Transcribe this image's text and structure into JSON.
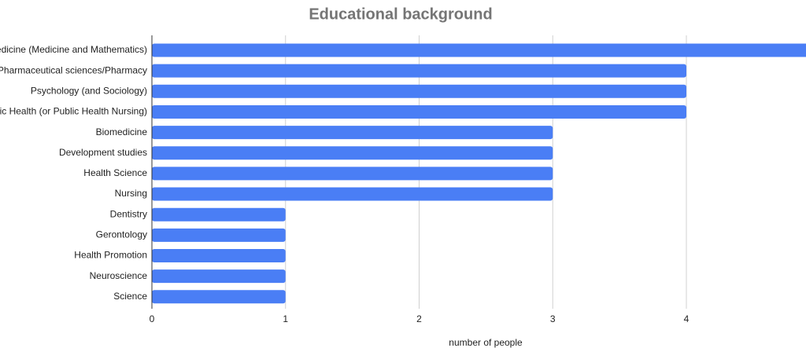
{
  "chart_data": {
    "type": "bar",
    "orientation": "horizontal",
    "title": "Educational background",
    "x_label": "number of people",
    "categories": [
      "edicine (Medicine and Mathematics)",
      "Pharmaceutical sciences/Pharmacy",
      "Psychology (and Sociology)",
      "ic Health (or Public Health Nursing)",
      "Biomedicine",
      "Development studies",
      "Health Science",
      "Nursing",
      "Dentistry",
      "Gerontology",
      "Health Promotion",
      "Neuroscience",
      "Science"
    ],
    "values": [
      5,
      4,
      4,
      4,
      3,
      3,
      3,
      3,
      1,
      1,
      1,
      1,
      1
    ],
    "color": "#4a7ef5",
    "xlim": [
      0,
      5
    ],
    "xticks": [
      0,
      1,
      2,
      3,
      4
    ],
    "grid": true
  }
}
